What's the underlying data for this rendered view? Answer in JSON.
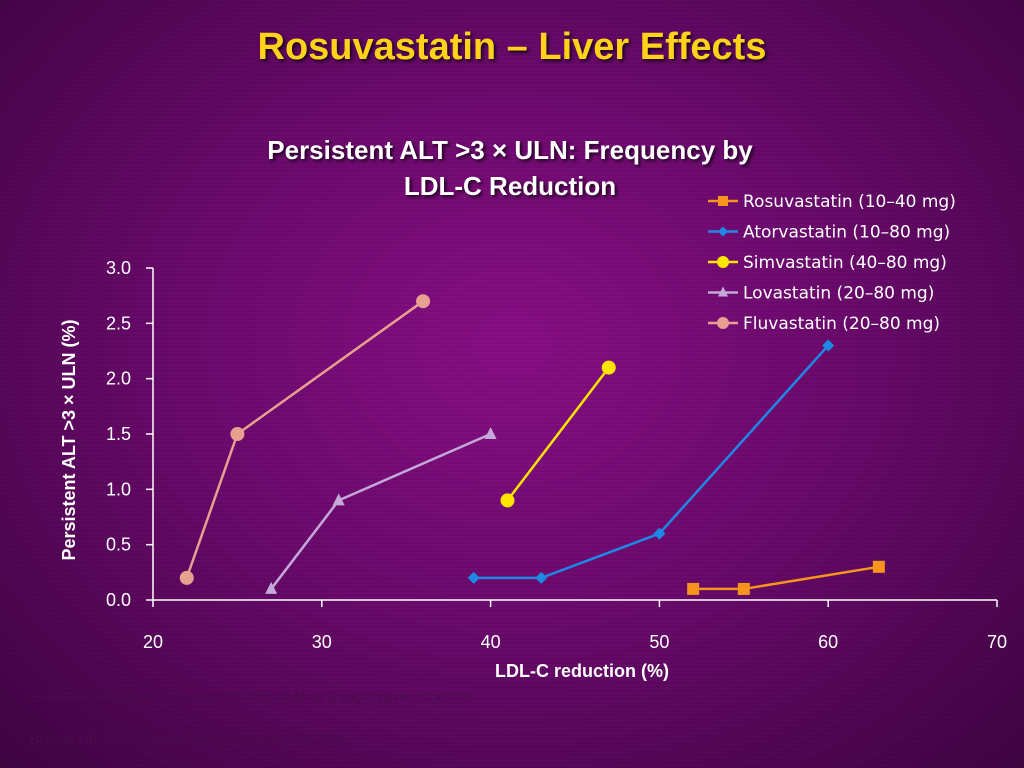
{
  "slide": {
    "title": "Rosuvastatin – Liver Effects",
    "footnote1": "Persistent elevation is elevation to >3 x ULN on 2 successive occasions",
    "footnote2_prefix": "Brewer HB. ",
    "footnote2_journal": "Am J Cardiol",
    "footnote2_suffix": " 2003;92(Suppl):23K–29K"
  },
  "chart_data": {
    "type": "line",
    "title_lines": [
      "Persistent ALT >3 × ULN: Frequency by",
      "LDL-C Reduction"
    ],
    "xlabel": "LDL-C reduction (%)",
    "ylabel": "Persistent ALT >3 × ULN (%)",
    "xlim": [
      20,
      70
    ],
    "ylim": [
      0,
      3.0
    ],
    "xticks": [
      20,
      30,
      40,
      50,
      60,
      70
    ],
    "xtick_labels": [
      "20",
      "30",
      "40",
      "50",
      "60",
      "70"
    ],
    "yticks": [
      0,
      0.5,
      1.0,
      1.5,
      2.0,
      2.5,
      3.0
    ],
    "ytick_labels": [
      "0.0",
      "0.5",
      "1.0",
      "1.5",
      "2.0",
      "2.5",
      "3.0"
    ],
    "grid": false,
    "legend_position": "top-right",
    "series": [
      {
        "name": "Rosuvastatin (10–40 mg)",
        "color": "#f7941d",
        "marker": "square",
        "points": [
          [
            52,
            0.1
          ],
          [
            55,
            0.1
          ],
          [
            63,
            0.3
          ]
        ]
      },
      {
        "name": "Atorvastatin (10–80 mg)",
        "color": "#1e88e5",
        "marker": "diamond",
        "points": [
          [
            39,
            0.2
          ],
          [
            43,
            0.2
          ],
          [
            50,
            0.6
          ],
          [
            60,
            2.3
          ]
        ]
      },
      {
        "name": "Simvastatin (40–80 mg)",
        "color": "#ffe600",
        "marker": "circle",
        "points": [
          [
            41,
            0.9
          ],
          [
            47,
            2.1
          ]
        ]
      },
      {
        "name": "Lovastatin (20–80 mg)",
        "color": "#c4a8d8",
        "marker": "triangle",
        "points": [
          [
            27,
            0.1
          ],
          [
            31,
            0.9
          ],
          [
            40,
            1.5
          ]
        ]
      },
      {
        "name": "Fluvastatin (20–80 mg)",
        "color": "#e8a090",
        "marker": "circle",
        "points": [
          [
            22,
            0.2
          ],
          [
            25,
            1.5
          ],
          [
            36,
            2.7
          ]
        ]
      }
    ]
  }
}
